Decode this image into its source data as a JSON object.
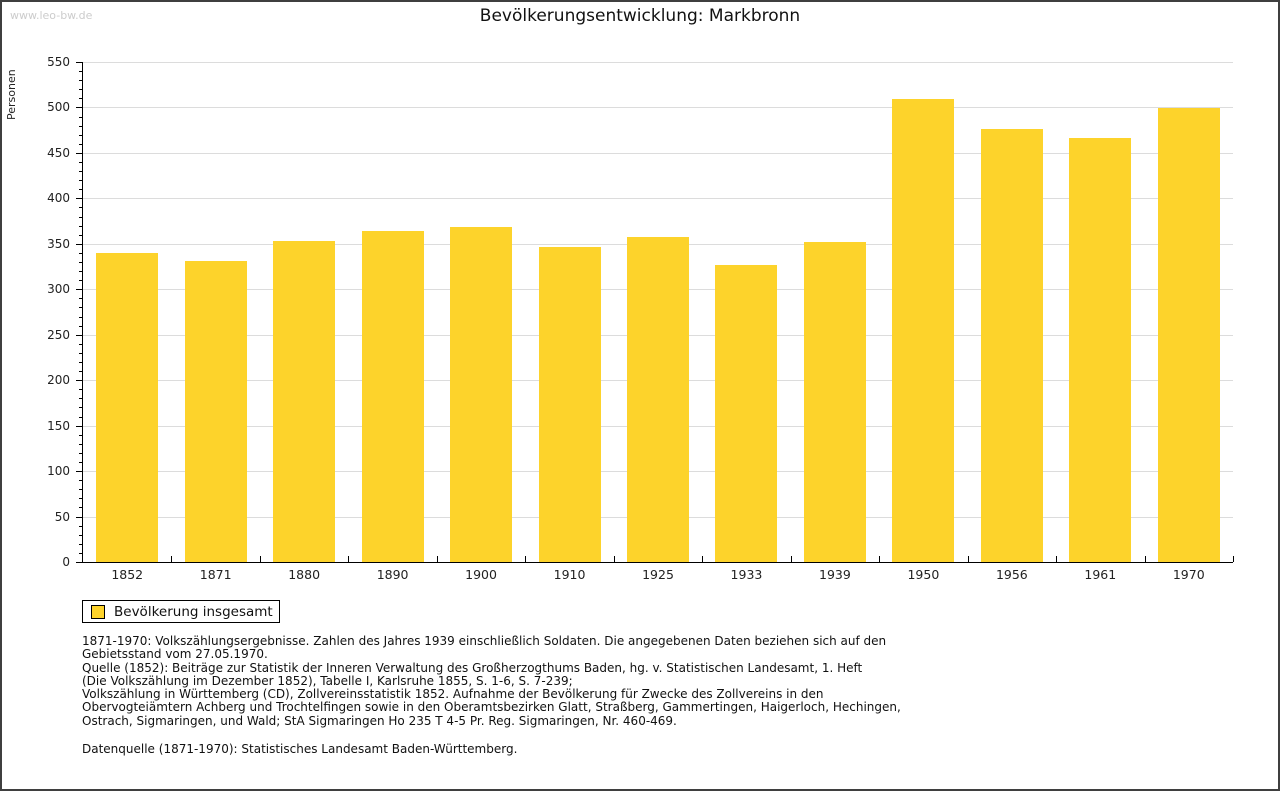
{
  "page": {
    "watermark": "www.leo-bw.de",
    "title": "Bevölkerungsentwicklung: Markbronn"
  },
  "chart_data": {
    "type": "bar",
    "title": "Bevölkerungsentwicklung: Markbronn",
    "ylabel": "Personen",
    "xlabel": "",
    "categories": [
      "1852",
      "1871",
      "1880",
      "1890",
      "1900",
      "1910",
      "1925",
      "1933",
      "1939",
      "1950",
      "1956",
      "1961",
      "1970"
    ],
    "values": [
      340,
      331,
      353,
      364,
      369,
      346,
      358,
      327,
      352,
      509,
      476,
      466,
      499
    ],
    "ylim": [
      0,
      550
    ],
    "ytick_step": 50,
    "ytick_minor_step": 10,
    "grid": "horizontal",
    "bar_color": "#fdd32b",
    "grid_color": "#dcdcdc",
    "legend": {
      "label": "Bevölkerung insgesamt",
      "position": "bottom-left"
    }
  },
  "footer": {
    "note_lines": [
      "1871-1970: Volkszählungsergebnisse. Zahlen des Jahres 1939 einschließlich Soldaten. Die angegebenen Daten beziehen sich auf den",
      "Gebietsstand vom 27.05.1970.",
      "Quelle (1852): Beiträge zur Statistik der Inneren Verwaltung des Großherzogthums Baden, hg. v. Statistischen Landesamt, 1. Heft",
      "(Die Volkszählung im Dezember 1852), Tabelle I, Karlsruhe 1855, S. 1-6, S. 7-239;",
      "Volkszählung in Württemberg (CD), Zollvereinsstatistik 1852. Aufnahme der Bevölkerung für Zwecke des Zollvereins in den",
      "Obervogteiämtern Achberg und Trochtelfingen sowie in den Oberamtsbezirken Glatt, Straßberg, Gammertingen, Haigerloch, Hechingen,",
      "Ostrach, Sigmaringen, und Wald; StA Sigmaringen Ho 235 T 4-5 Pr. Reg. Sigmaringen, Nr. 460-469."
    ],
    "source_line": "Datenquelle (1871-1970): Statistisches Landesamt Baden-Württemberg."
  }
}
